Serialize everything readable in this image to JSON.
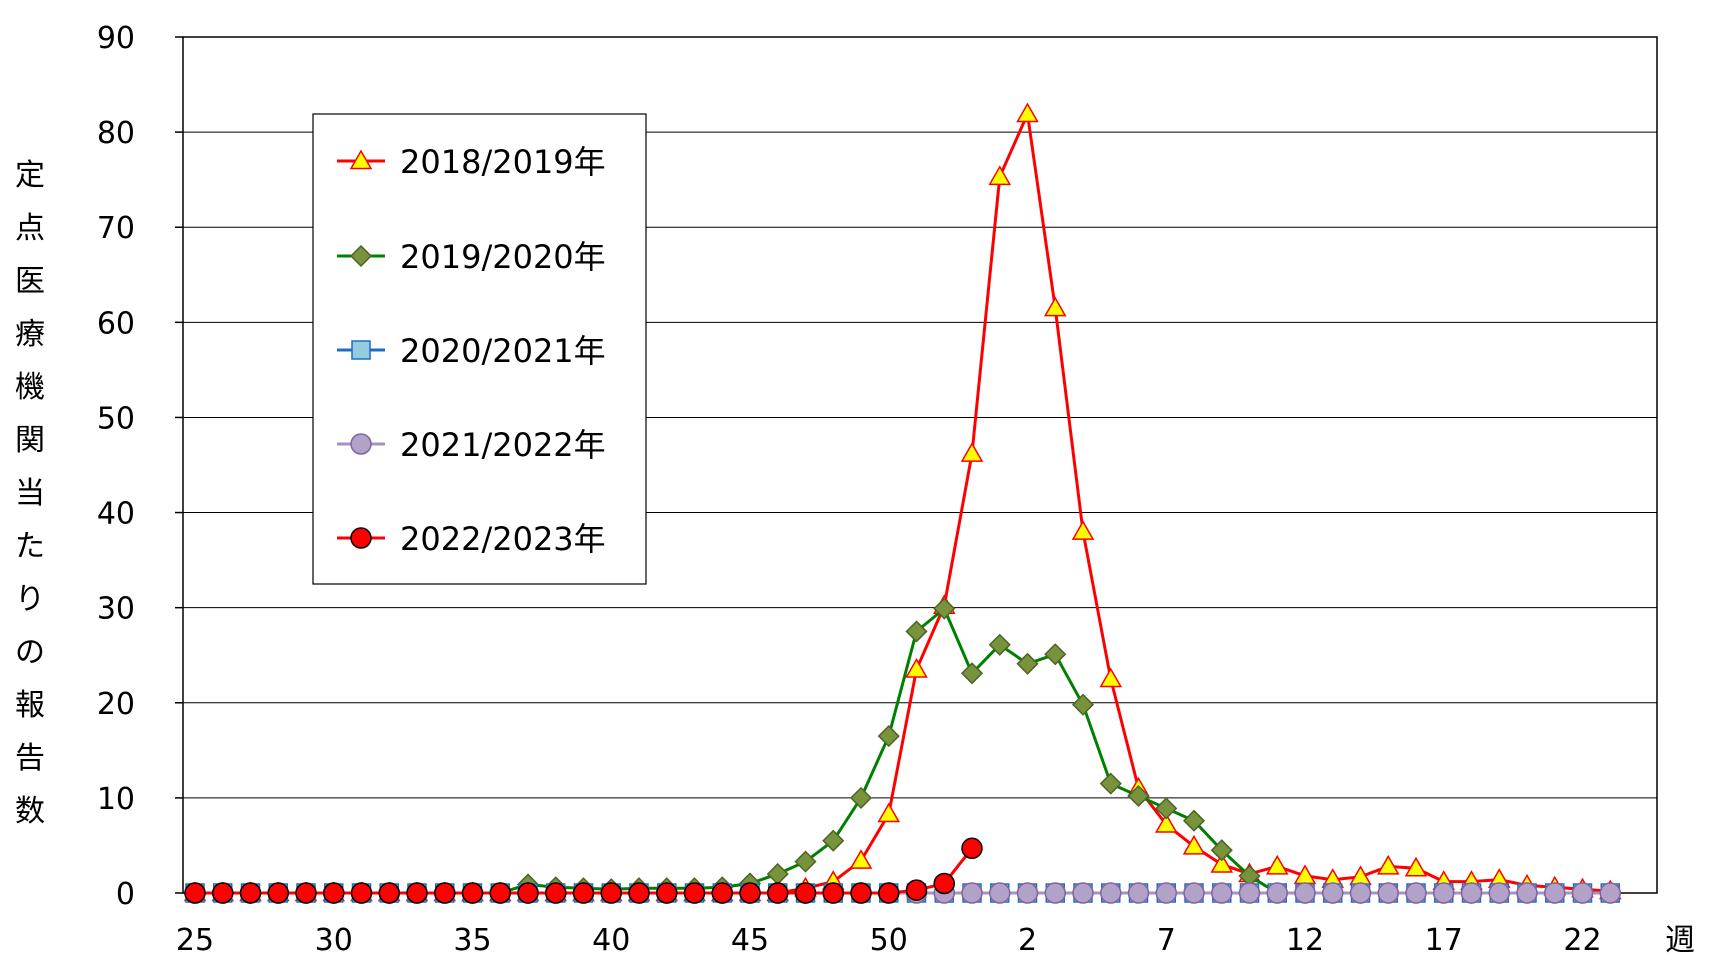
{
  "chart_data": {
    "type": "line",
    "ylabel": "定点医療機関当たりの報告数",
    "xlabel": "週",
    "ylim": [
      0,
      90
    ],
    "yticks": [
      "0",
      "10",
      "20",
      "30",
      "40",
      "50",
      "60",
      "70",
      "80",
      "90"
    ],
    "xtick_labels": [
      "25",
      "30",
      "35",
      "40",
      "45",
      "50",
      "2",
      "7",
      "12",
      "17",
      "22",
      "週"
    ],
    "week_sequence": [
      25,
      26,
      27,
      28,
      29,
      30,
      31,
      32,
      33,
      34,
      35,
      36,
      37,
      38,
      39,
      40,
      41,
      42,
      43,
      44,
      45,
      46,
      47,
      48,
      49,
      50,
      51,
      52,
      1,
      2,
      3,
      4,
      5,
      6,
      7,
      8,
      9,
      10,
      11,
      12,
      13,
      14,
      15,
      16,
      17,
      18,
      19,
      20,
      21,
      22,
      23,
      24
    ],
    "grid": "horizontal",
    "legend_position": "upper-left",
    "series": [
      {
        "name": "2018/2019年",
        "color": "#ff0000",
        "marker": "triangle",
        "marker_fill": "#ffff00",
        "values": [
          0,
          0,
          0,
          0,
          0,
          0,
          0,
          0,
          0,
          0,
          0,
          0,
          0,
          0,
          0,
          0,
          0,
          0,
          0,
          0,
          0,
          0,
          0.5,
          1.2,
          3.4,
          8.3,
          23.5,
          30.2,
          46.2,
          75.3,
          81.9,
          61.5,
          38.0,
          22.5,
          11.0,
          7.2,
          4.9,
          3.0,
          2.0,
          2.8,
          1.8,
          1.4,
          1.7,
          2.8,
          2.6,
          1.2,
          1.2,
          1.4,
          0.8,
          0.6,
          0.4,
          0.2
        ]
      },
      {
        "name": "2019/2020年",
        "color": "#008000",
        "marker": "diamond",
        "marker_fill": "#77933c",
        "values": [
          0,
          0,
          0,
          0,
          0,
          0,
          0,
          0,
          0,
          0,
          0,
          0,
          0.9,
          0.6,
          0.5,
          0.4,
          0.5,
          0.5,
          0.5,
          0.6,
          1.0,
          2.0,
          3.3,
          5.5,
          10.0,
          16.5,
          27.5,
          29.9,
          23.1,
          26.1,
          24.1,
          25.1,
          19.8,
          11.5,
          10.2,
          8.9,
          7.6,
          4.5,
          1.8,
          0,
          0,
          0,
          0,
          0,
          0,
          0,
          0,
          0,
          0,
          0,
          0,
          0
        ]
      },
      {
        "name": "2020/2021年",
        "color": "#1f6dc0",
        "marker": "square",
        "marker_fill": "#93cddd",
        "values": [
          0,
          0,
          0,
          0,
          0,
          0,
          0,
          0,
          0,
          0,
          0,
          0,
          0,
          0,
          0,
          0,
          0,
          0,
          0,
          0,
          0,
          0,
          0,
          0,
          0,
          0,
          0,
          0,
          0,
          0,
          0,
          0,
          0,
          0,
          0,
          0,
          0,
          0,
          0,
          0,
          0,
          0,
          0,
          0,
          0,
          0,
          0,
          0,
          0,
          0,
          0,
          0
        ]
      },
      {
        "name": "2021/2022年",
        "color": "#a293c4",
        "marker": "circle",
        "marker_fill": "#b3a2c7",
        "values": [
          0,
          0,
          0,
          0,
          0,
          0,
          0,
          0,
          0,
          0,
          0,
          0,
          0,
          0,
          0,
          0,
          0,
          0,
          0,
          0,
          0,
          0,
          0,
          0,
          0,
          0,
          0,
          0,
          0,
          0,
          0,
          0,
          0,
          0,
          0,
          0,
          0,
          0,
          0,
          0,
          0,
          0,
          0,
          0,
          0,
          0,
          0,
          0,
          0,
          0,
          0,
          0
        ]
      },
      {
        "name": "2022/2023年",
        "color": "#ff0000",
        "marker": "circle",
        "marker_fill": "#ff0000",
        "values": [
          0,
          0,
          0,
          0,
          0,
          0,
          0,
          0,
          0,
          0,
          0,
          0,
          0,
          0,
          0,
          0,
          0,
          0,
          0,
          0,
          0,
          0,
          0,
          0,
          0,
          0,
          0.3,
          1.0,
          4.7
        ]
      }
    ]
  }
}
